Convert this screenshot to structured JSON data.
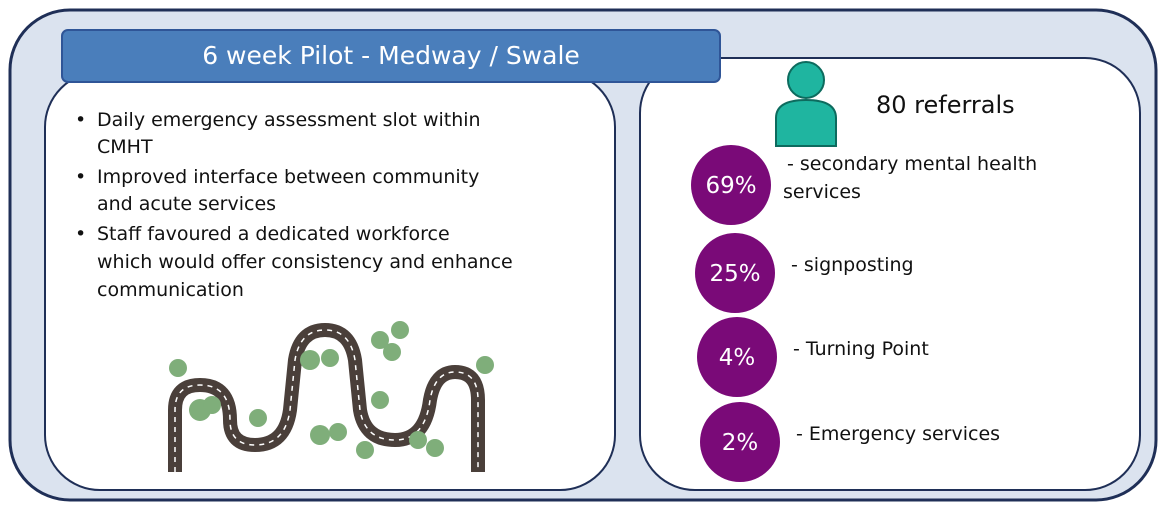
{
  "title": "6 week Pilot - Medway / Swale",
  "bullets": [
    "Daily emergency assessment slot within",
    "CMHT",
    "Improved interface between community",
    "and acute services",
    "Staff favoured a dedicated workforce",
    "which would offer consistency and enhance",
    "communication"
  ],
  "referrals": "80 referrals",
  "outcomes": [
    {
      "percent": "69%",
      "label": [
        "- secondary mental health",
        "services"
      ]
    },
    {
      "percent": "25%",
      "label": [
        "- signposting"
      ]
    },
    {
      "percent": "4%",
      "label": [
        "- Turning Point"
      ]
    },
    {
      "percent": "2%",
      "label": [
        "- Emergency services"
      ]
    }
  ]
}
